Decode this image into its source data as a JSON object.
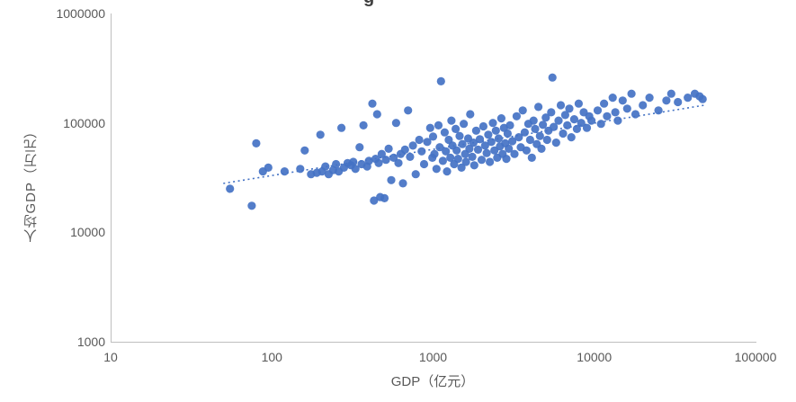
{
  "title_fragment": "g",
  "edge_fragment": "（",
  "axes": {
    "x_label": "GDP（亿元）",
    "y_label": "人均GDP（万元）"
  },
  "colors": {
    "point": "#4472C4",
    "trendline": "#4472C4",
    "axis_line": "#BFBFBF",
    "tick_text": "#595959"
  },
  "chart_data": {
    "type": "scatter",
    "title": "",
    "xlabel": "GDP（亿元）",
    "ylabel": "人均GDP（万元）",
    "x_scale": "log",
    "y_scale": "log",
    "xlim": [
      10,
      100000
    ],
    "ylim": [
      1000,
      1000000
    ],
    "grid": false,
    "legend": "none",
    "x_tick_values": [
      10,
      100,
      1000,
      10000,
      100000
    ],
    "x_tick_labels": [
      "10",
      "100",
      "1000",
      "10000",
      "100000"
    ],
    "y_tick_values": [
      1000,
      10000,
      100000,
      1000000
    ],
    "y_tick_labels": [
      "1000",
      "10000",
      "100000",
      "1000000"
    ],
    "trendline": {
      "style": "dotted",
      "x": [
        50,
        48000
      ],
      "y": [
        28000,
        145000
      ]
    },
    "points": [
      [
        55,
        25000
      ],
      [
        75,
        17500
      ],
      [
        80,
        65000
      ],
      [
        88,
        36000
      ],
      [
        95,
        39000
      ],
      [
        120,
        36000
      ],
      [
        150,
        38000
      ],
      [
        160,
        56000
      ],
      [
        175,
        34000
      ],
      [
        190,
        35000
      ],
      [
        200,
        78000
      ],
      [
        205,
        36000
      ],
      [
        215,
        40000
      ],
      [
        225,
        34000
      ],
      [
        240,
        37000
      ],
      [
        250,
        42000
      ],
      [
        260,
        36000
      ],
      [
        270,
        90000
      ],
      [
        280,
        39000
      ],
      [
        295,
        43000
      ],
      [
        310,
        41000
      ],
      [
        320,
        44000
      ],
      [
        330,
        38000
      ],
      [
        350,
        60000
      ],
      [
        360,
        42000
      ],
      [
        370,
        95000
      ],
      [
        390,
        40000
      ],
      [
        400,
        45000
      ],
      [
        420,
        150000
      ],
      [
        430,
        19500
      ],
      [
        440,
        47000
      ],
      [
        450,
        120000
      ],
      [
        460,
        43000
      ],
      [
        470,
        21000
      ],
      [
        480,
        52000
      ],
      [
        500,
        20500
      ],
      [
        510,
        46000
      ],
      [
        530,
        58000
      ],
      [
        550,
        30000
      ],
      [
        570,
        48000
      ],
      [
        590,
        100000
      ],
      [
        610,
        43000
      ],
      [
        630,
        52000
      ],
      [
        650,
        28000
      ],
      [
        670,
        57000
      ],
      [
        700,
        130000
      ],
      [
        720,
        49000
      ],
      [
        750,
        62000
      ],
      [
        780,
        34000
      ],
      [
        820,
        70000
      ],
      [
        850,
        55000
      ],
      [
        880,
        42000
      ],
      [
        920,
        67000
      ],
      [
        960,
        90000
      ],
      [
        990,
        48000
      ],
      [
        1000,
        75000
      ],
      [
        1020,
        52000
      ],
      [
        1050,
        38000
      ],
      [
        1080,
        95000
      ],
      [
        1100,
        60000
      ],
      [
        1120,
        240000
      ],
      [
        1150,
        45000
      ],
      [
        1180,
        82000
      ],
      [
        1200,
        55000
      ],
      [
        1220,
        36000
      ],
      [
        1250,
        70000
      ],
      [
        1280,
        48000
      ],
      [
        1300,
        105000
      ],
      [
        1320,
        62000
      ],
      [
        1350,
        42000
      ],
      [
        1380,
        88000
      ],
      [
        1400,
        56000
      ],
      [
        1430,
        47000
      ],
      [
        1460,
        76000
      ],
      [
        1500,
        39000
      ],
      [
        1520,
        64000
      ],
      [
        1550,
        98000
      ],
      [
        1580,
        52000
      ],
      [
        1600,
        44000
      ],
      [
        1650,
        72000
      ],
      [
        1680,
        58000
      ],
      [
        1700,
        120000
      ],
      [
        1750,
        49000
      ],
      [
        1780,
        66000
      ],
      [
        1800,
        41000
      ],
      [
        1850,
        85000
      ],
      [
        1900,
        57000
      ],
      [
        1950,
        71000
      ],
      [
        2000,
        46000
      ],
      [
        2050,
        93000
      ],
      [
        2100,
        62000
      ],
      [
        2150,
        53000
      ],
      [
        2200,
        78000
      ],
      [
        2250,
        44000
      ],
      [
        2300,
        67000
      ],
      [
        2350,
        100000
      ],
      [
        2400,
        56000
      ],
      [
        2450,
        85000
      ],
      [
        2500,
        48000
      ],
      [
        2550,
        72000
      ],
      [
        2600,
        61000
      ],
      [
        2650,
        110000
      ],
      [
        2700,
        52000
      ],
      [
        2750,
        90000
      ],
      [
        2800,
        65000
      ],
      [
        2850,
        47000
      ],
      [
        2900,
        80000
      ],
      [
        2950,
        58000
      ],
      [
        3000,
        95000
      ],
      [
        3100,
        68000
      ],
      [
        3200,
        52000
      ],
      [
        3300,
        115000
      ],
      [
        3400,
        74000
      ],
      [
        3500,
        60000
      ],
      [
        3600,
        130000
      ],
      [
        3700,
        82000
      ],
      [
        3800,
        56000
      ],
      [
        3900,
        98000
      ],
      [
        4000,
        70000
      ],
      [
        4100,
        48000
      ],
      [
        4200,
        105000
      ],
      [
        4300,
        88000
      ],
      [
        4400,
        64000
      ],
      [
        4500,
        140000
      ],
      [
        4600,
        76000
      ],
      [
        4700,
        58000
      ],
      [
        4800,
        96000
      ],
      [
        5000,
        112000
      ],
      [
        5100,
        70000
      ],
      [
        5200,
        85000
      ],
      [
        5400,
        125000
      ],
      [
        5500,
        260000
      ],
      [
        5600,
        92000
      ],
      [
        5800,
        66000
      ],
      [
        6000,
        105000
      ],
      [
        6200,
        145000
      ],
      [
        6400,
        80000
      ],
      [
        6600,
        118000
      ],
      [
        6800,
        95000
      ],
      [
        7000,
        135000
      ],
      [
        7200,
        74000
      ],
      [
        7500,
        108000
      ],
      [
        7800,
        88000
      ],
      [
        8000,
        150000
      ],
      [
        8300,
        100000
      ],
      [
        8600,
        125000
      ],
      [
        9000,
        90000
      ],
      [
        9300,
        115000
      ],
      [
        9600,
        105000
      ],
      [
        10500,
        130000
      ],
      [
        11000,
        98000
      ],
      [
        11500,
        150000
      ],
      [
        12000,
        115000
      ],
      [
        13000,
        170000
      ],
      [
        13500,
        125000
      ],
      [
        14000,
        105000
      ],
      [
        15000,
        160000
      ],
      [
        16000,
        135000
      ],
      [
        17000,
        185000
      ],
      [
        18000,
        120000
      ],
      [
        20000,
        145000
      ],
      [
        22000,
        170000
      ],
      [
        25000,
        130000
      ],
      [
        28000,
        160000
      ],
      [
        30000,
        185000
      ],
      [
        33000,
        155000
      ],
      [
        38000,
        170000
      ],
      [
        42000,
        185000
      ],
      [
        45000,
        175000
      ],
      [
        47000,
        165000
      ]
    ]
  }
}
